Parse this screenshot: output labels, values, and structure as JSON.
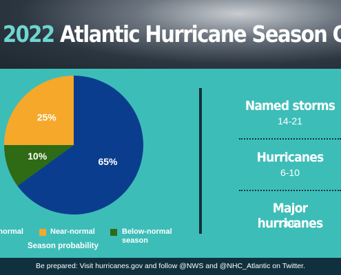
{
  "header": {
    "year": "2022",
    "title": "Atlantic Hurricane Season Outlook"
  },
  "chart_data": {
    "type": "pie",
    "caption": "Season probability",
    "categories": [
      "Above-normal",
      "Near-normal",
      "Below-normal season"
    ],
    "values": [
      65,
      25,
      10
    ],
    "value_labels": [
      "65%",
      "25%",
      "10%"
    ],
    "colors": [
      "#0b3d8e",
      "#f5a82a",
      "#2f6a14"
    ]
  },
  "stats": [
    {
      "label": "Named storms",
      "value": "14-21"
    },
    {
      "label": "Hurricanes",
      "value": "6-10"
    },
    {
      "label": "Major hurricanes",
      "value": "3-6"
    }
  ],
  "footer": "Be prepared: Visit hurricanes.gov and follow @NWS and @NHC_Atlantic on Twitter."
}
